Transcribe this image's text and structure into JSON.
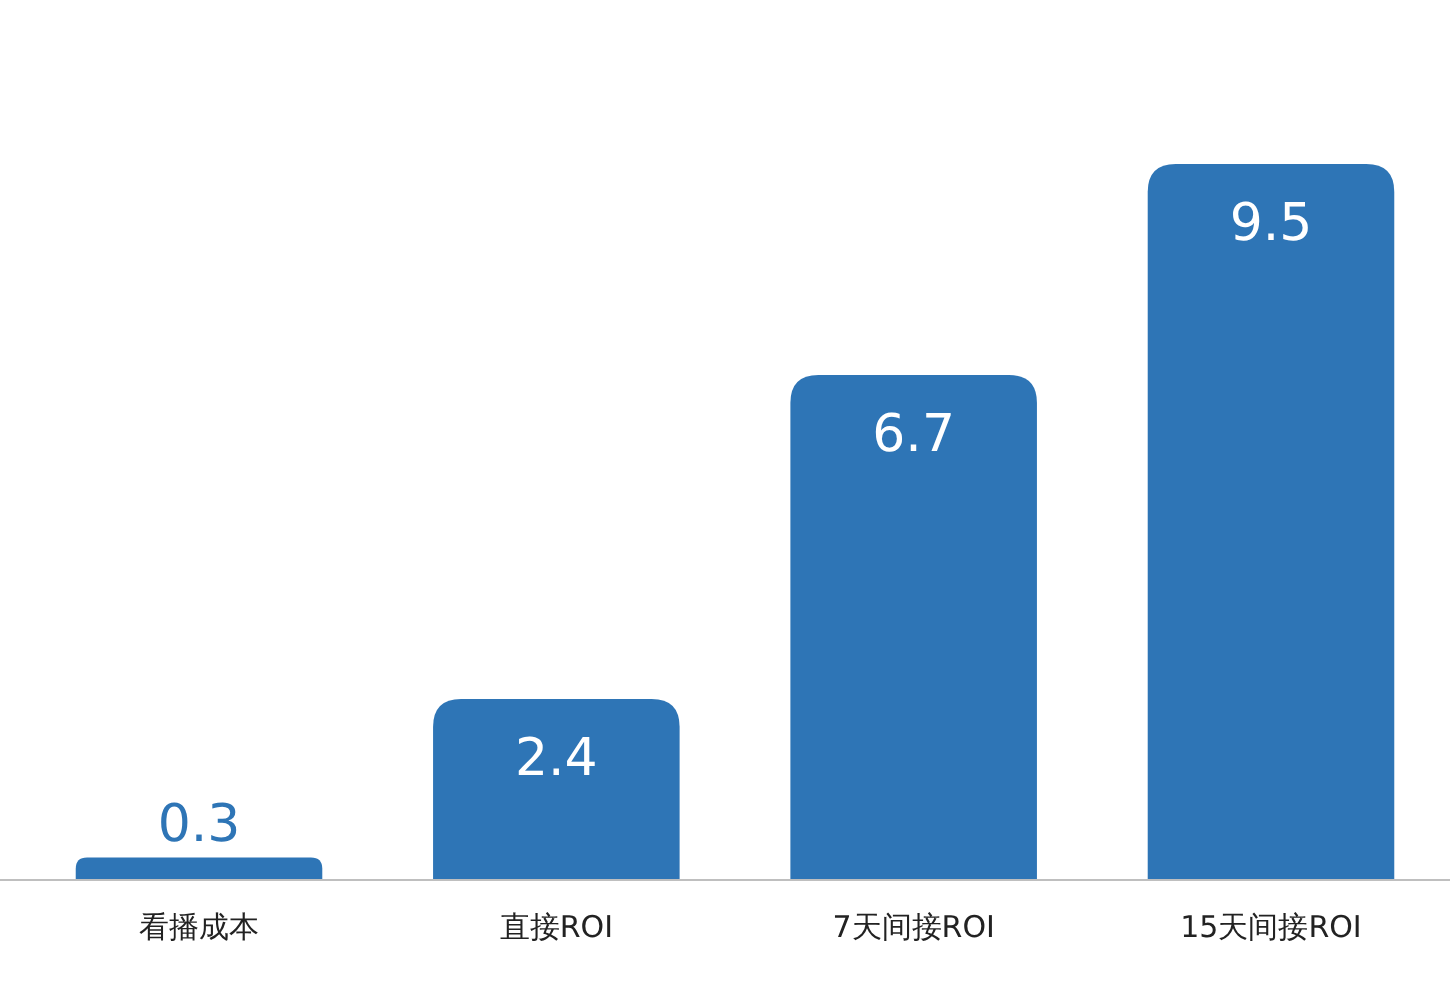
{
  "chart_data": {
    "type": "bar",
    "categories": [
      "看播成本",
      "直接ROI",
      "7天间接ROI",
      "15天间接ROI"
    ],
    "values": [
      0.3,
      2.4,
      6.7,
      9.5
    ],
    "color": "#2e75b6",
    "data_labels": true
  }
}
